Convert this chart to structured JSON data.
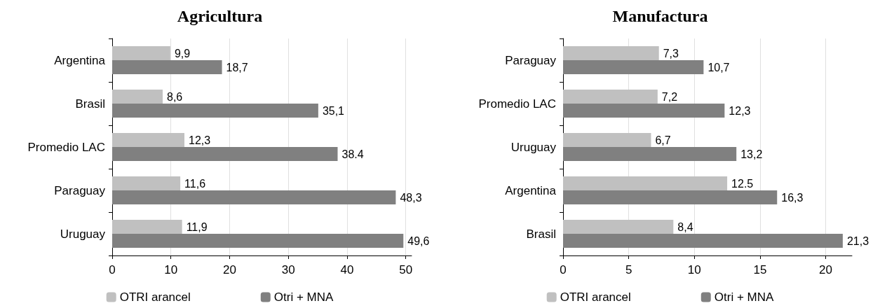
{
  "chart_data": [
    {
      "type": "bar",
      "orientation": "horizontal",
      "title": "Agricultura",
      "categories": [
        "Argentina",
        "Brasil",
        "Promedio LAC",
        "Paraguay",
        "Uruguay"
      ],
      "series": [
        {
          "name": "OTRI arancel",
          "color": "#c0c0c0",
          "values": [
            9.9,
            8.6,
            12.3,
            11.6,
            11.9
          ],
          "value_labels": [
            "9,9",
            "8,6",
            "12,3",
            "11,6",
            "11,9"
          ]
        },
        {
          "name": "Otri + MNA",
          "color": "#808080",
          "values": [
            18.7,
            35.1,
            38.4,
            48.3,
            49.6
          ],
          "value_labels": [
            "18,7",
            "35,1",
            "38.4",
            "48,3",
            "49,6"
          ]
        }
      ],
      "xlim": [
        0,
        51
      ],
      "xticks": [
        0,
        10,
        20,
        30,
        40,
        50
      ],
      "grid": "x",
      "legend": "bottom"
    },
    {
      "type": "bar",
      "orientation": "horizontal",
      "title": "Manufactura",
      "categories": [
        "Paraguay",
        "Promedio LAC",
        "Uruguay",
        "Argentina",
        "Brasil"
      ],
      "series": [
        {
          "name": "OTRI arancel",
          "color": "#c0c0c0",
          "values": [
            7.3,
            7.2,
            6.7,
            12.5,
            8.4
          ],
          "value_labels": [
            "7,3",
            "7,2",
            "6,7",
            "12.5",
            "8,4"
          ]
        },
        {
          "name": "Otri + MNA",
          "color": "#808080",
          "values": [
            10.7,
            12.3,
            13.2,
            16.3,
            21.3
          ],
          "value_labels": [
            "10,7",
            "12,3",
            "13,2",
            "16,3",
            "21,3"
          ]
        }
      ],
      "xlim": [
        0,
        22
      ],
      "xticks": [
        0,
        5,
        10,
        15,
        20
      ],
      "grid": "x",
      "legend": "bottom"
    }
  ]
}
